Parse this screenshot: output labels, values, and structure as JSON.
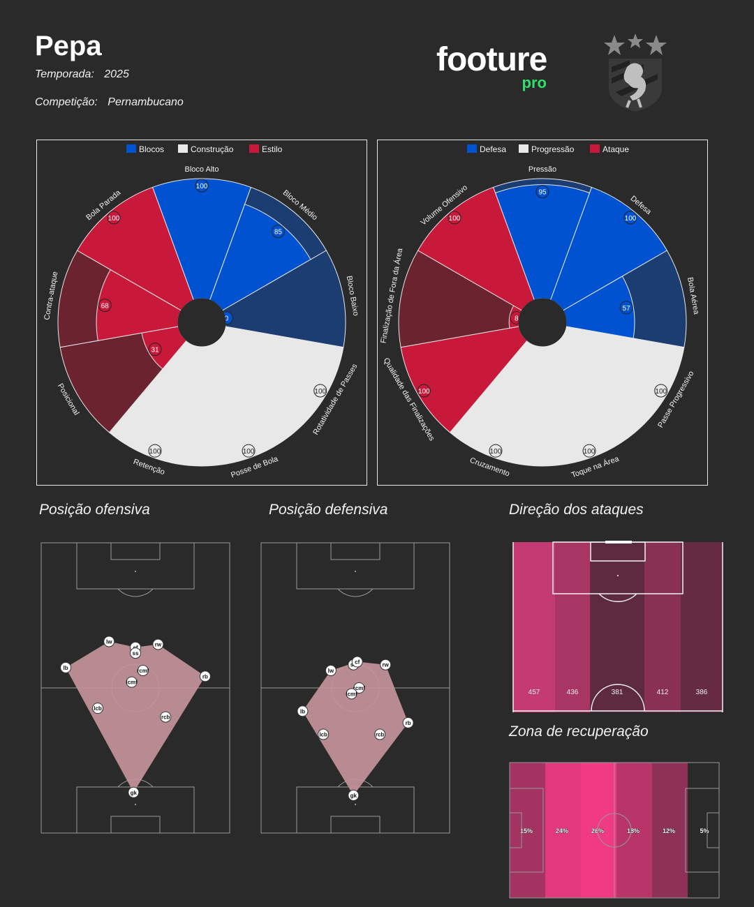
{
  "header": {
    "player_name": "Pepa",
    "season_label": "Temporada:",
    "season_value": "2025",
    "competition_label": "Competição:",
    "competition_value": "Pernambucano",
    "brand": "footure",
    "brand_sub": "pro"
  },
  "colors": {
    "blue": "#0052d1",
    "blue_light": "#1b3d72",
    "white": "#e8e8e8",
    "red": "#c8193a",
    "red_light": "#6b2330",
    "accent_green": "#2ee06b",
    "hull_fill": "#c4939a"
  },
  "sections": {
    "offensive": "Posição ofensiva",
    "defensive": "Posição defensiva",
    "direction": "Direção dos ataques",
    "recovery": "Zona de recuperação"
  },
  "chart_data": [
    {
      "type": "polar-bar",
      "legend": [
        {
          "name": "Blocos",
          "color": "#0052d1"
        },
        {
          "name": "Construção",
          "color": "#e8e8e8"
        },
        {
          "name": "Estilo",
          "color": "#c8193a"
        }
      ],
      "categories": [
        "Bloco Alto",
        "Bloco Médio",
        "Bloco Baixo",
        "Rotatividade de Passes",
        "Posse de Bola",
        "Retenção",
        "Posicional",
        "Contra-ataque",
        "Bola Parada"
      ],
      "groups": [
        "Blocos",
        "Blocos",
        "Blocos",
        "Construção",
        "Construção",
        "Construção",
        "Estilo",
        "Estilo",
        "Estilo"
      ],
      "values": [
        100,
        85,
        0,
        100,
        100,
        100,
        31,
        68,
        100
      ],
      "rmax": 100
    },
    {
      "type": "polar-bar",
      "legend": [
        {
          "name": "Defesa",
          "color": "#0052d1"
        },
        {
          "name": "Progressão",
          "color": "#e8e8e8"
        },
        {
          "name": "Ataque",
          "color": "#c8193a"
        }
      ],
      "categories": [
        "Pressão",
        "Defesa",
        "Bola Aérea",
        "Passe Progressivo",
        "Toque na Área",
        "Cruzamento",
        "Qualidade das Finalizações",
        "Finalização de Fora da Área",
        "Volume Ofensivo"
      ],
      "groups": [
        "Defesa",
        "Defesa",
        "Defesa",
        "Progressão",
        "Progressão",
        "Progressão",
        "Ataque",
        "Ataque",
        "Ataque"
      ],
      "values": [
        95,
        100,
        57,
        100,
        100,
        100,
        100,
        8,
        100
      ],
      "rmax": 100
    },
    {
      "type": "bar",
      "title": "Direção dos ataques",
      "categories": [
        "lane1",
        "lane2",
        "lane3",
        "lane4",
        "lane5"
      ],
      "values": [
        457,
        436,
        381,
        412,
        386
      ]
    },
    {
      "type": "bar",
      "title": "Zona de recuperação",
      "categories": [
        "zone1",
        "zone2",
        "zone3",
        "zone4",
        "zone5",
        "zone6"
      ],
      "values": [
        15,
        24,
        26,
        18,
        12,
        5
      ],
      "value_labels": [
        "15%",
        "24%",
        "26%",
        "18%",
        "12%",
        "5%"
      ]
    }
  ],
  "formations": {
    "offensive": [
      {
        "label": "cf",
        "x": 50,
        "y": 36
      },
      {
        "label": "ss",
        "x": 50,
        "y": 38
      },
      {
        "label": "lw",
        "x": 36,
        "y": 34
      },
      {
        "label": "rw",
        "x": 62,
        "y": 35
      },
      {
        "label": "lb",
        "x": 13,
        "y": 43
      },
      {
        "label": "rb",
        "x": 87,
        "y": 46
      },
      {
        "label": "rcmf",
        "x": 54,
        "y": 44
      },
      {
        "label": "lcmf",
        "x": 48,
        "y": 48
      },
      {
        "label": "lcb",
        "x": 30,
        "y": 57
      },
      {
        "label": "rcb",
        "x": 66,
        "y": 60
      },
      {
        "label": "gk",
        "x": 49,
        "y": 86
      }
    ],
    "offensive_hull": [
      "lb",
      "lw",
      "cf",
      "rw",
      "rb",
      "gk"
    ],
    "defensive": [
      {
        "label": "ss",
        "x": 49,
        "y": 42
      },
      {
        "label": "cf",
        "x": 51,
        "y": 41
      },
      {
        "label": "lw",
        "x": 37,
        "y": 44
      },
      {
        "label": "rw",
        "x": 66,
        "y": 42
      },
      {
        "label": "rcmf",
        "x": 52,
        "y": 50
      },
      {
        "label": "lcmf",
        "x": 48,
        "y": 52
      },
      {
        "label": "lb",
        "x": 22,
        "y": 58
      },
      {
        "label": "rb",
        "x": 78,
        "y": 62
      },
      {
        "label": "lcb",
        "x": 33,
        "y": 66
      },
      {
        "label": "rcb",
        "x": 63,
        "y": 66
      },
      {
        "label": "gk",
        "x": 49,
        "y": 87
      }
    ],
    "defensive_hull": [
      "lb",
      "lw",
      "cf",
      "rw",
      "rb",
      "gk"
    ]
  }
}
